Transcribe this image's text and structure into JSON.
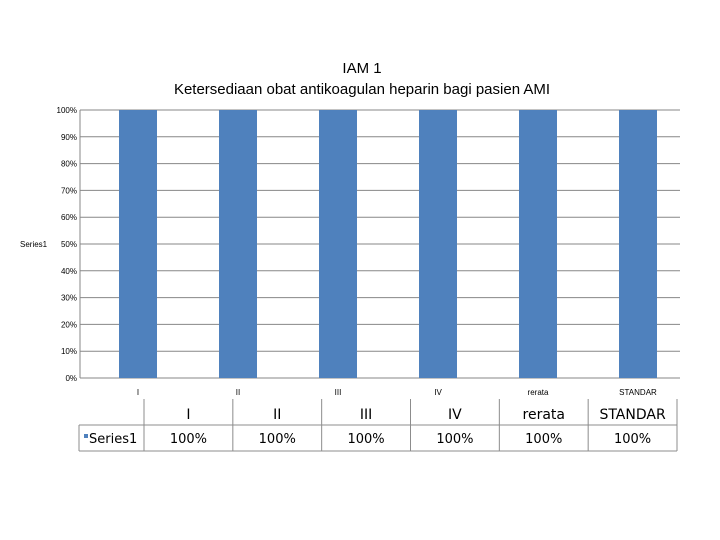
{
  "chart_data": {
    "type": "bar",
    "title": "IAM 1",
    "subtitle": "Ketersediaan obat antikoagulan heparin bagi pasien AMI",
    "ylabel": "Series1",
    "xlabel": "",
    "categories": [
      "I",
      "II",
      "III",
      "IV",
      "rerata",
      "STANDAR"
    ],
    "series": [
      {
        "name": "Series1",
        "values": [
          100,
          100,
          100,
          100,
          100,
          100
        ]
      }
    ],
    "ylim": [
      0,
      100
    ],
    "yticks": [
      "0%",
      "10%",
      "20%",
      "30%",
      "40%",
      "50%",
      "60%",
      "70%",
      "80%",
      "90%",
      "100%"
    ],
    "grid": true,
    "bar_color": "#4f81bd",
    "data_table": {
      "row_label": "Series1",
      "values": [
        "100%",
        "100%",
        "100%",
        "100%",
        "100%",
        "100%"
      ]
    }
  }
}
